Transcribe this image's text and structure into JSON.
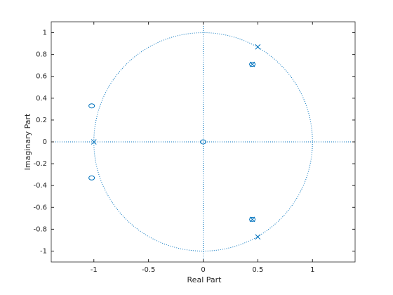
{
  "chart_data": {
    "type": "scatter",
    "xlabel": "Real Part",
    "ylabel": "Imaginary Part",
    "xlim": [
      -1.39,
      1.39
    ],
    "ylim": [
      -1.1,
      1.1
    ],
    "xticks": [
      -1,
      -0.5,
      0,
      0.5,
      1
    ],
    "yticks": [
      -1,
      -0.8,
      -0.6,
      -0.4,
      -0.2,
      0,
      0.2,
      0.4,
      0.6,
      0.8,
      1
    ],
    "unit_circle": true,
    "series": [
      {
        "marker": "o",
        "color": "#0072bd",
        "x": [
          -1.02,
          -1.02,
          0,
          0.45,
          0.45
        ],
        "values": [
          0.33,
          -0.33,
          0,
          0.71,
          -0.71
        ]
      },
      {
        "marker": "x",
        "color": "#0072bd",
        "x": [
          0.5,
          0.5,
          -1,
          0.45,
          0.45
        ],
        "values": [
          0.87,
          -0.87,
          0,
          0.71,
          -0.71
        ]
      }
    ]
  }
}
